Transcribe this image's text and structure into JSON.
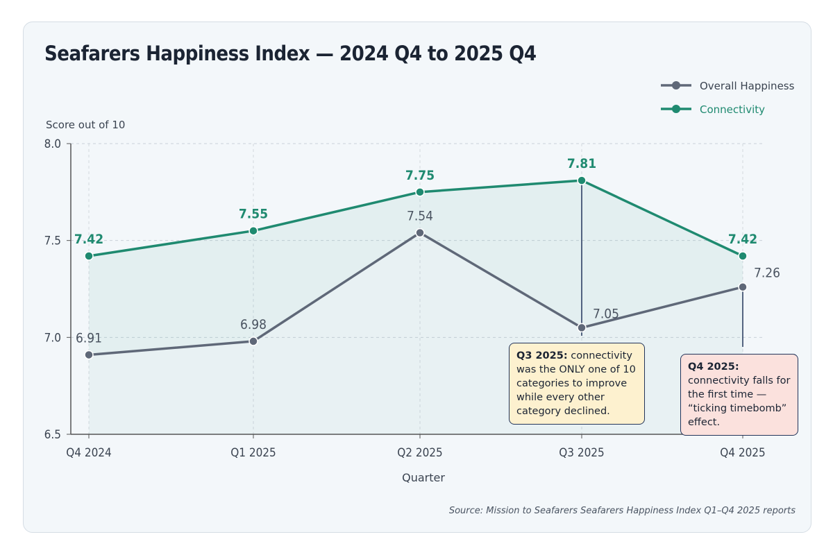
{
  "chart_data": {
    "type": "line",
    "title": "Seafarers Happiness Index — 2024 Q4 to 2025 Q4",
    "xlabel": "Quarter",
    "ylabel": "Score out of 10",
    "categories": [
      "Q4 2024",
      "Q1 2025",
      "Q2 2025",
      "Q3 2025",
      "Q4 2025"
    ],
    "ylim": [
      6.5,
      8.0
    ],
    "yticks": [
      "6.5",
      "7.0",
      "7.5",
      "8.0"
    ],
    "grid": true,
    "legend_position": "top-right",
    "series": [
      {
        "name": "Overall Happiness",
        "color": "#5f6878",
        "values": [
          6.91,
          6.98,
          7.54,
          7.05,
          7.26
        ],
        "labels": [
          "6.91",
          "6.98",
          "7.54",
          "7.05",
          "7.26"
        ]
      },
      {
        "name": "Connectivity",
        "color": "#1f8a70",
        "values": [
          7.42,
          7.55,
          7.75,
          7.81,
          7.42
        ],
        "labels": [
          "7.42",
          "7.55",
          "7.75",
          "7.81",
          "7.42"
        ]
      }
    ],
    "annotations": [
      {
        "category": "Q3 2025",
        "bold": "Q3 2025:",
        "text": "connectivity was the ONLY one of 10 categories to improve while every other category declined.",
        "background": "#fdf1cf"
      },
      {
        "category": "Q4 2025",
        "bold": "Q4 2025:",
        "text": "connectivity falls for the first time — “ticking timebomb” effect.",
        "background": "#fbe1dd"
      }
    ],
    "source": "Source: Mission to Seafarers Seafarers Happiness Index Q1–Q4 2025 reports"
  }
}
